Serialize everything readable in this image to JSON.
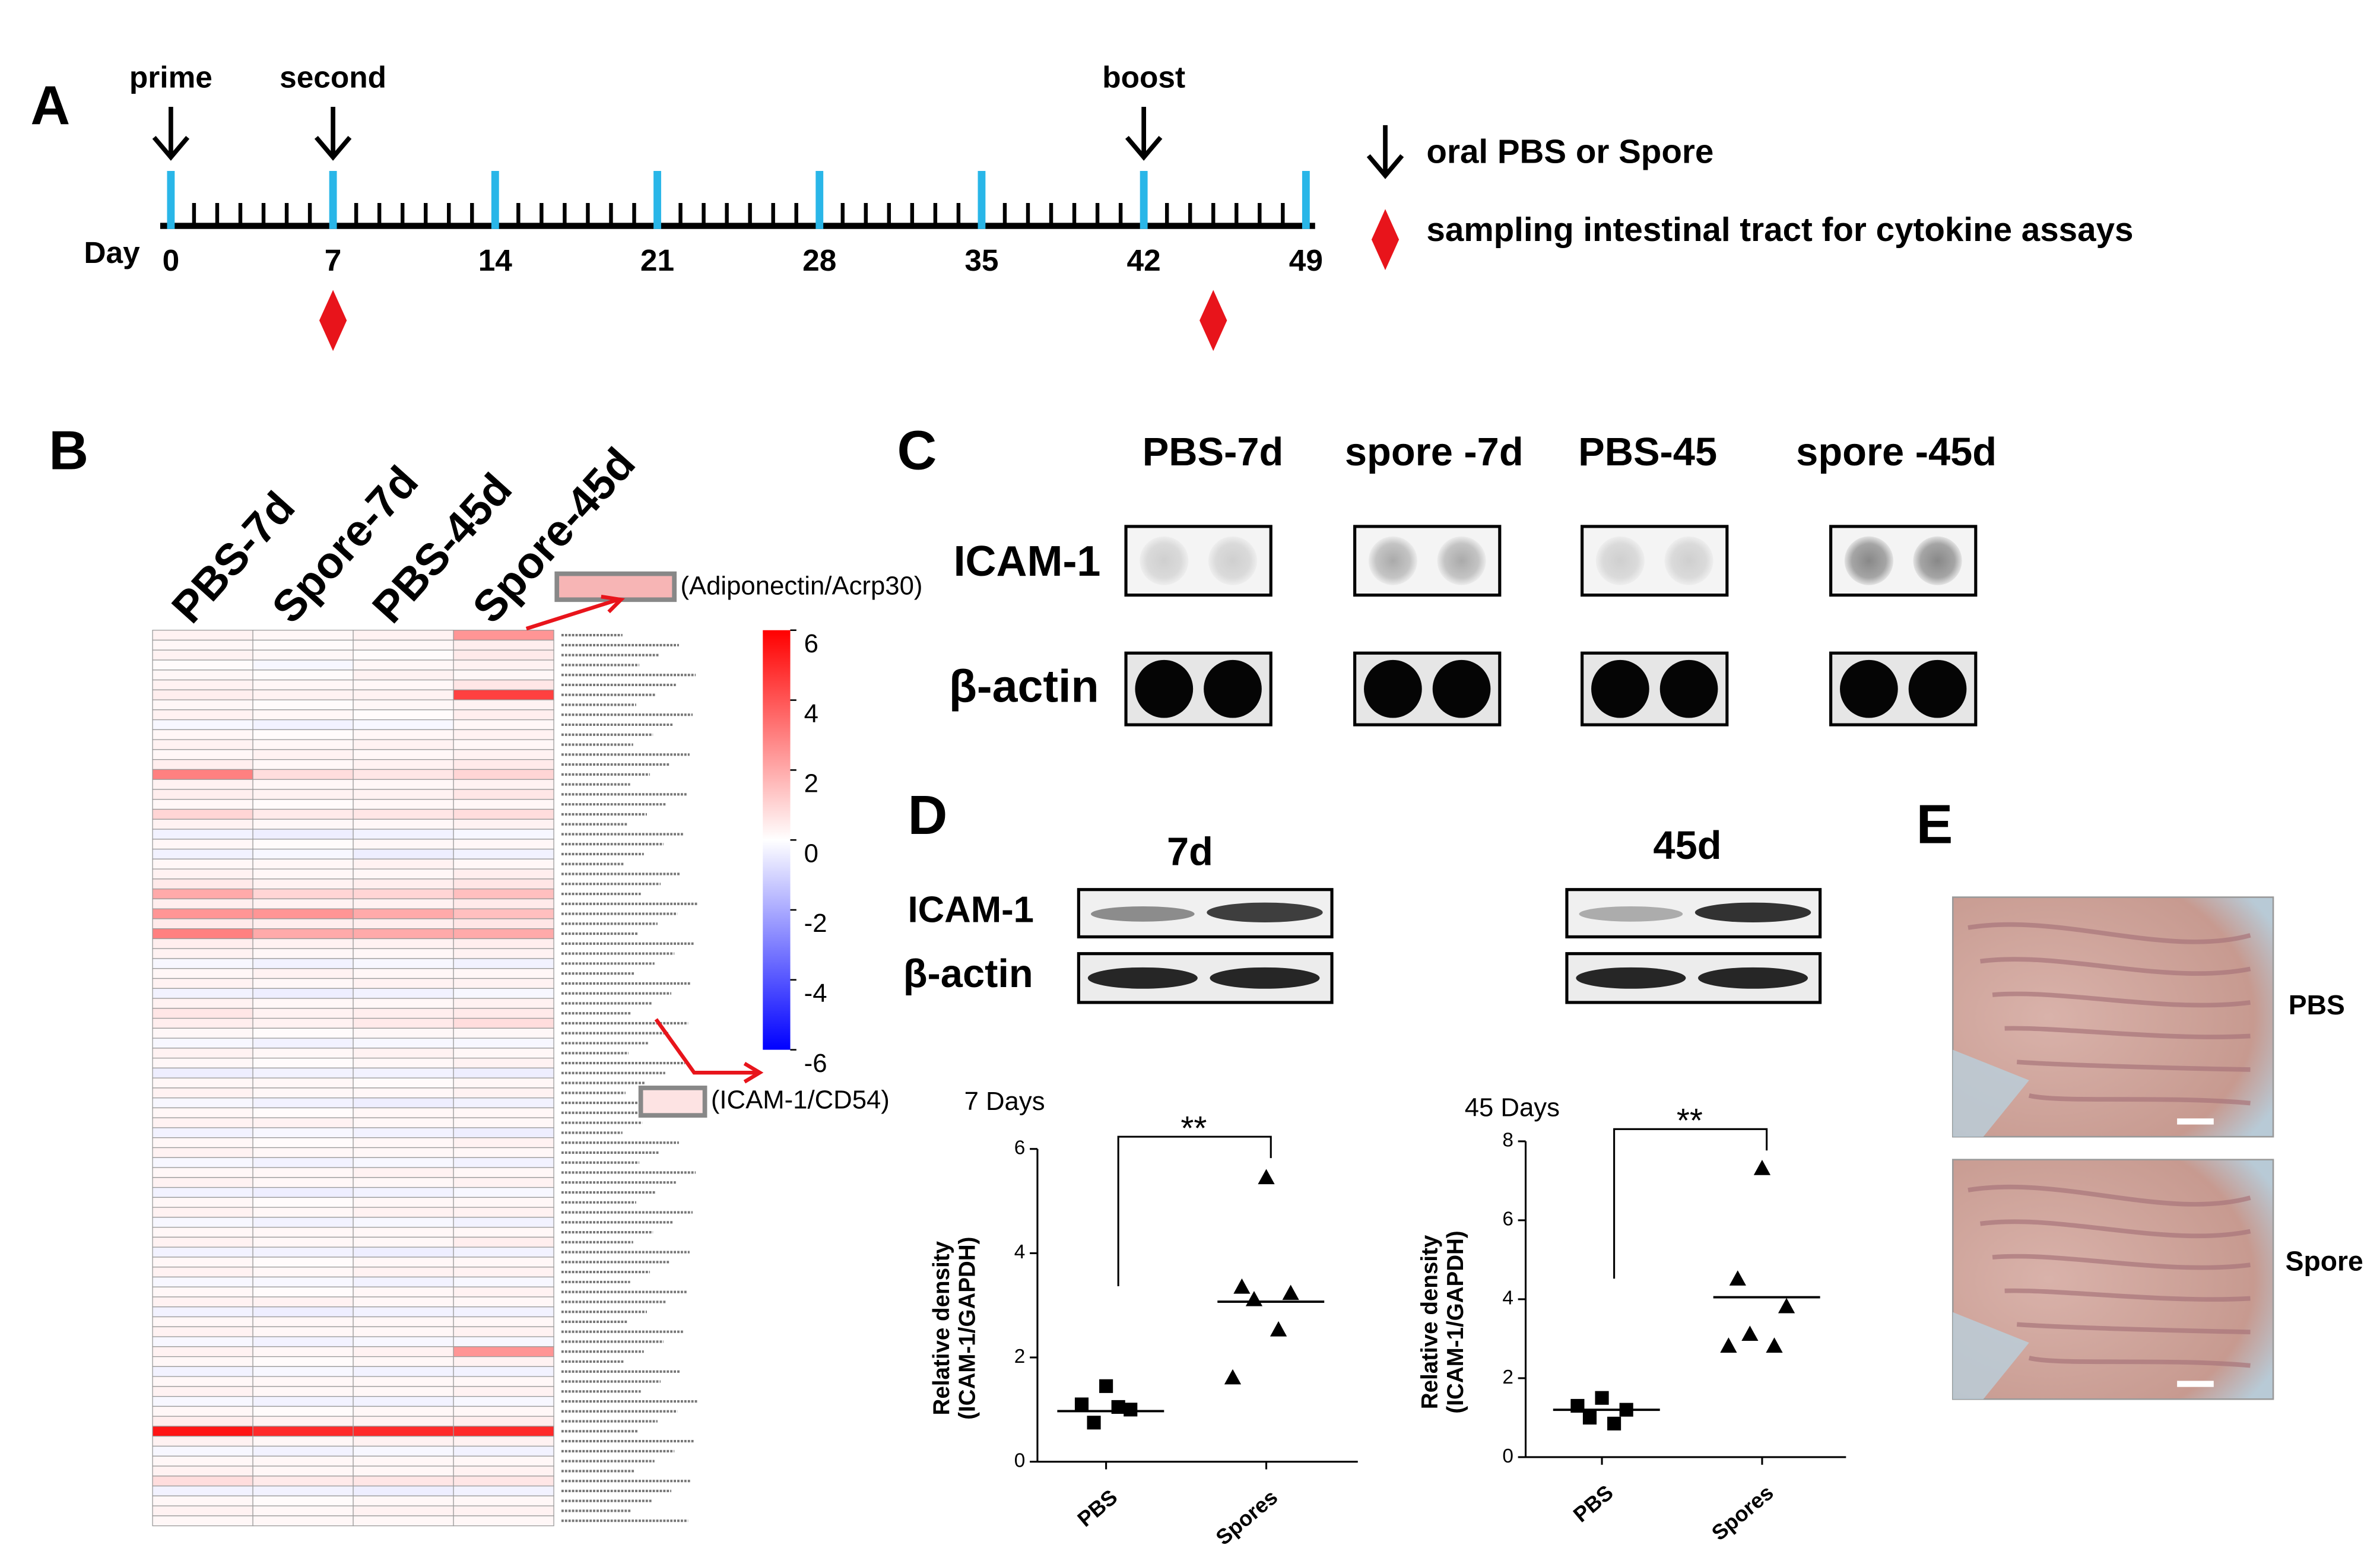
{
  "panel_labels": [
    "A",
    "B",
    "C",
    "D",
    "E"
  ],
  "timeline": {
    "day_label": "Day",
    "xlim": [
      0,
      49
    ],
    "ticks": [
      0,
      7,
      14,
      21,
      28,
      35,
      42,
      49
    ],
    "events": [
      {
        "label": "prime",
        "day": 0
      },
      {
        "label": "second",
        "day": 7
      },
      {
        "label": "boost",
        "day": 42
      }
    ],
    "sampling_days": [
      7,
      45
    ],
    "legend": [
      "oral PBS or Spore",
      "sampling intestinal tract for cytokine  assays"
    ]
  },
  "chart_data": [
    {
      "type": "heatmap",
      "columns": [
        "PBS-7d",
        "Spore-7d",
        "PBS-45d",
        "Spore-45d"
      ],
      "zlim": [
        -6,
        6
      ],
      "zticks": [
        6,
        4,
        2,
        0,
        -2,
        -4,
        -6
      ],
      "annotations": [
        "(Adiponectin/Acrp30)",
        "(ICAM-1/CD54)"
      ],
      "values": [
        [
          0.3,
          0.2,
          0.3,
          2.5
        ],
        [
          0.2,
          0.1,
          0.2,
          0.4
        ],
        [
          0.3,
          0.2,
          0.1,
          0.5
        ],
        [
          0.1,
          -0.2,
          0.2,
          0.3
        ],
        [
          0.2,
          0.1,
          0.3,
          0.2
        ],
        [
          0.3,
          0.2,
          0.2,
          0.6
        ],
        [
          0.4,
          0.3,
          0.3,
          4.5
        ],
        [
          0.2,
          0.1,
          0.2,
          0.3
        ],
        [
          0.3,
          0.2,
          0.1,
          0.4
        ],
        [
          -0.2,
          -0.3,
          -0.2,
          0.2
        ],
        [
          0.2,
          0.1,
          0.2,
          0.3
        ],
        [
          0.3,
          0.2,
          0.3,
          0.2
        ],
        [
          0.2,
          0.3,
          0.2,
          0.3
        ],
        [
          0.4,
          0.2,
          0.3,
          0.5
        ],
        [
          3,
          0.8,
          0.6,
          1
        ],
        [
          0.3,
          0.2,
          0.2,
          0.3
        ],
        [
          0.4,
          0.3,
          0.3,
          0.6
        ],
        [
          0.2,
          0.1,
          0.2,
          0.2
        ],
        [
          1,
          0.5,
          0.6,
          0.8
        ],
        [
          0.3,
          0.2,
          0.2,
          0.3
        ],
        [
          -0.3,
          -0.4,
          -0.3,
          -0.2
        ],
        [
          0.2,
          0.1,
          0.2,
          0.2
        ],
        [
          -0.3,
          -0.2,
          -0.4,
          -0.3
        ],
        [
          0.2,
          0.2,
          0.3,
          0.2
        ],
        [
          0.3,
          0.2,
          0.2,
          0.4
        ],
        [
          0.5,
          0.3,
          0.4,
          0.6
        ],
        [
          2,
          1,
          1,
          1.5
        ],
        [
          0.4,
          0.3,
          0.3,
          0.5
        ],
        [
          2.5,
          2.5,
          2,
          1.5
        ],
        [
          0.5,
          0.4,
          0.4,
          0.6
        ],
        [
          3,
          2,
          2,
          2
        ],
        [
          0.4,
          0.3,
          0.3,
          0.4
        ],
        [
          0.3,
          0.2,
          0.2,
          0.3
        ],
        [
          -0.2,
          -0.3,
          -0.2,
          -0.3
        ],
        [
          0.2,
          0.3,
          0.2,
          0.2
        ],
        [
          0.3,
          0.2,
          0.3,
          0.3
        ],
        [
          -0.3,
          -0.4,
          -0.3,
          -0.2
        ],
        [
          0.3,
          0.2,
          0.2,
          0.3
        ],
        [
          0.6,
          0.3,
          0.4,
          0.5
        ],
        [
          0.4,
          0.3,
          0.5,
          0.8
        ],
        [
          0.2,
          0.1,
          0.2,
          0.2
        ],
        [
          -0.2,
          -0.3,
          -0.2,
          -0.2
        ],
        [
          0.3,
          0.2,
          0.3,
          0.2
        ],
        [
          0.2,
          0.1,
          0.2,
          0.3
        ],
        [
          -0.4,
          -0.3,
          -0.3,
          -0.4
        ],
        [
          0.2,
          0.2,
          0.1,
          0.2
        ],
        [
          0.3,
          0.2,
          0.2,
          0.3
        ],
        [
          -0.2,
          -0.3,
          -0.4,
          -0.3
        ],
        [
          0.2,
          0.1,
          0.2,
          0.2
        ],
        [
          0.3,
          0.3,
          0.2,
          0.2
        ],
        [
          -0.3,
          -0.2,
          -0.3,
          -0.4
        ],
        [
          0.2,
          0.1,
          0.2,
          0.3
        ],
        [
          0.3,
          0.2,
          0.2,
          0.2
        ],
        [
          -0.2,
          -0.3,
          -0.2,
          -0.3
        ],
        [
          0.2,
          0.2,
          0.3,
          0.2
        ],
        [
          0.3,
          0.2,
          0.2,
          0.3
        ],
        [
          -0.3,
          -0.4,
          -0.3,
          -0.2
        ],
        [
          0.2,
          0.1,
          0.2,
          0.2
        ],
        [
          0.3,
          0.2,
          0.3,
          0.3
        ],
        [
          -0.2,
          -0.3,
          -0.2,
          -0.3
        ],
        [
          0.2,
          0.2,
          0.2,
          0.2
        ],
        [
          0.3,
          0.2,
          0.2,
          0.4
        ],
        [
          -0.3,
          -0.3,
          -0.4,
          -0.3
        ],
        [
          0.2,
          0.1,
          0.2,
          0.2
        ],
        [
          0.3,
          0.2,
          0.3,
          0.3
        ],
        [
          -0.2,
          -0.2,
          -0.3,
          -0.2
        ],
        [
          0.2,
          0.1,
          0.2,
          0.3
        ],
        [
          0.3,
          0.3,
          0.2,
          0.2
        ],
        [
          -0.3,
          -0.4,
          -0.3,
          -0.3
        ],
        [
          0.2,
          0.2,
          0.2,
          0.2
        ],
        [
          0.3,
          0.2,
          0.2,
          0.3
        ],
        [
          -0.2,
          -0.3,
          -0.2,
          -0.2
        ],
        [
          0.3,
          0.2,
          0.3,
          2.5
        ],
        [
          0.2,
          0.1,
          0.2,
          0.3
        ],
        [
          -0.3,
          -0.2,
          -0.3,
          -0.3
        ],
        [
          0.2,
          0.2,
          0.2,
          0.2
        ],
        [
          0.3,
          0.2,
          0.2,
          0.3
        ],
        [
          -0.2,
          -0.3,
          -0.3,
          -0.2
        ],
        [
          0.2,
          0.1,
          0.2,
          0.2
        ],
        [
          0.4,
          0.3,
          0.3,
          0.4
        ],
        [
          5.5,
          5,
          5,
          5
        ],
        [
          0.3,
          0.2,
          0.3,
          0.3
        ],
        [
          -0.2,
          -0.3,
          -0.2,
          -0.3
        ],
        [
          0.2,
          0.2,
          0.2,
          0.2
        ],
        [
          0.3,
          0.2,
          0.2,
          0.3
        ],
        [
          0.8,
          0.5,
          0.6,
          0.6
        ],
        [
          -0.3,
          -0.3,
          -0.4,
          -0.3
        ],
        [
          0.2,
          0.1,
          0.2,
          0.2
        ],
        [
          0.3,
          0.2,
          0.3,
          0.3
        ],
        [
          0.2,
          0.2,
          0.2,
          0.2
        ]
      ]
    },
    {
      "type": "scatter",
      "title": "7 Days",
      "ylabel": [
        "Relative density",
        "(ICAM-1/GAPDH)"
      ],
      "categories": [
        "PBS",
        "Spores"
      ],
      "values": [
        [
          1.45,
          1.1,
          1.0,
          0.75,
          1.05
        ],
        [
          5.44,
          3.34,
          3.22,
          3.1,
          2.52,
          1.6
        ]
      ],
      "means": [
        0.97,
        3.07
      ],
      "markers": [
        "square",
        "triangle"
      ],
      "significance": "**",
      "ylim": [
        0,
        6
      ],
      "yticks": [
        0,
        2,
        4,
        6
      ],
      "color": "#000000"
    },
    {
      "type": "scatter",
      "title": "45 Days",
      "ylabel": [
        "Relative density",
        "(ICAM-1/GAPDH)"
      ],
      "categories": [
        "PBS",
        "Spores"
      ],
      "values": [
        [
          1.5,
          1.3,
          1.2,
          1.0,
          0.85
        ],
        [
          7.3,
          4.5,
          3.8,
          3.1,
          2.8,
          2.8
        ]
      ],
      "means": [
        1.2,
        4.05
      ],
      "markers": [
        "square",
        "triangle"
      ],
      "significance": "**",
      "ylim": [
        0,
        8
      ],
      "yticks": [
        0,
        2,
        4,
        6,
        8
      ],
      "color": "#000000"
    }
  ],
  "dot_blot": {
    "columns": [
      "PBS-7d",
      "spore -7d",
      "PBS-45",
      "spore -45d"
    ],
    "rows": [
      "ICAM-1",
      "β-actin"
    ]
  },
  "western": {
    "groups": [
      "7d",
      "45d"
    ],
    "rows": [
      "ICAM-1",
      "β-actin"
    ]
  },
  "histology": {
    "labels": [
      "PBS",
      "Spore"
    ]
  }
}
